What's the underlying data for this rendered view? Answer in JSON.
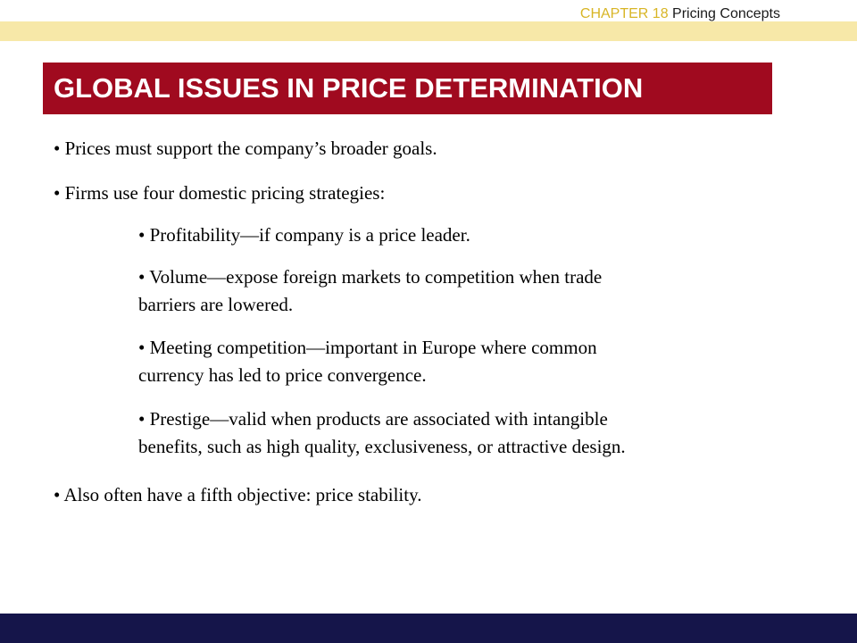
{
  "header": {
    "chapter_number": "CHAPTER 18",
    "chapter_title": "Pricing Concepts"
  },
  "slide": {
    "title": "GLOBAL ISSUES IN PRICE DETERMINATION",
    "bullets": [
      {
        "level": 1,
        "lines": [
          "• Prices must support the company’s broader goals."
        ]
      },
      {
        "level": 1,
        "lines": [
          "• Firms use four domestic pricing strategies:"
        ]
      },
      {
        "level": 2,
        "lines": [
          "• Profitability—if company is a price leader."
        ]
      },
      {
        "level": 2,
        "lines": [
          "• Volume—expose foreign markets to competition when trade",
          "barriers are lowered."
        ]
      },
      {
        "level": 2,
        "lines": [
          "• Meeting competition—important in Europe where common",
          "currency has led to price convergence."
        ]
      },
      {
        "level": 2,
        "lines": [
          "• Prestige—valid when products are associated with intangible",
          "benefits, such as high quality, exclusiveness, or attractive design."
        ]
      },
      {
        "level": 1,
        "lines": [
          "• Also often have a fifth objective: price stability."
        ]
      }
    ]
  },
  "colors": {
    "header_band": "#f7e8a8",
    "chapter_number": "#d8b526",
    "title_background": "#a00a1f",
    "title_text": "#ffffff",
    "footer_band": "#15154a"
  }
}
